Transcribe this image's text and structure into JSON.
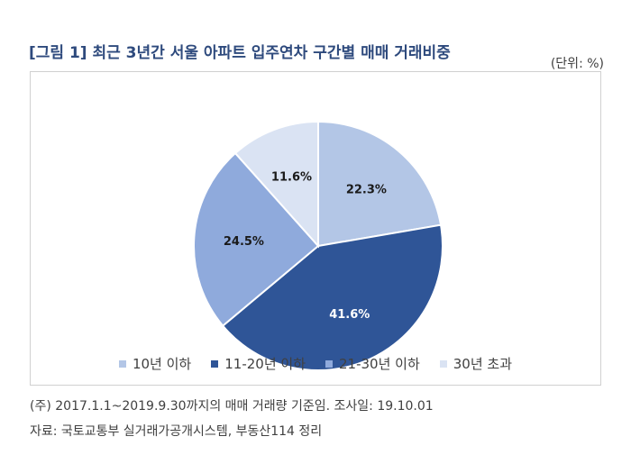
{
  "title": "[그림 1] 최근 3년간 서울 아파트 입주연차 구간별 매매 거래비중",
  "unit": "(단위: %)",
  "chart_data": {
    "type": "pie",
    "start_angle_deg": 0,
    "direction": "clockwise",
    "slices": [
      {
        "label": "10년 이하",
        "value": 22.3,
        "value_label": "22.3%",
        "color": "#b3c6e6",
        "label_color": "#1a1a1a"
      },
      {
        "label": "11-20년 이하",
        "value": 41.6,
        "value_label": "41.6%",
        "color": "#2f5597",
        "label_color": "#ffffff"
      },
      {
        "label": "21-30년 이하",
        "value": 24.5,
        "value_label": "24.5%",
        "color": "#8faadc",
        "label_color": "#1a1a1a"
      },
      {
        "label": "30년 초과",
        "value": 11.6,
        "value_label": "11.6%",
        "color": "#dae3f3",
        "label_color": "#1a1a1a"
      }
    ],
    "legend_position": "bottom"
  },
  "footnotes": {
    "note": "(주) 2017.1.1~2019.9.30까지의 매매 거래량 기준임. 조사일: 19.10.01",
    "source": "자료: 국토교통부 실거래가공개시스템, 부동산114 정리"
  }
}
